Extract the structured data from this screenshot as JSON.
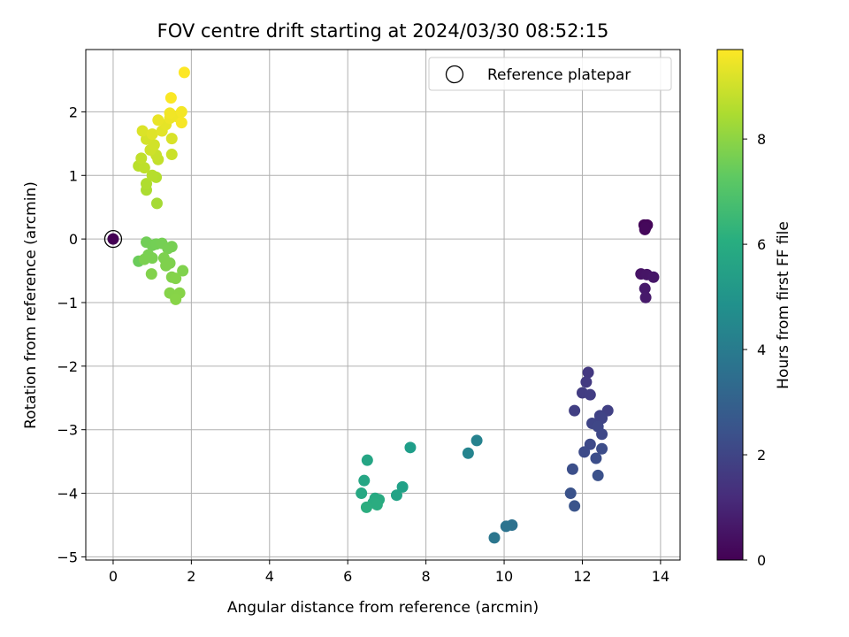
{
  "chart_data": {
    "type": "scatter",
    "title": "FOV centre drift starting at 2024/03/30 08:52:15",
    "xlabel": "Angular distance from reference (arcmin)",
    "ylabel": "Rotation from reference (arcmin)",
    "xlim": [
      -0.7,
      14.5
    ],
    "ylim": [
      -5.05,
      2.98
    ],
    "xticks": [
      0,
      2,
      4,
      6,
      8,
      10,
      12,
      14
    ],
    "yticks": [
      -5,
      -4,
      -3,
      -2,
      -1,
      0,
      1,
      2
    ],
    "grid": true,
    "legend": {
      "position": "top-right",
      "entries": [
        "Reference platepar"
      ]
    },
    "colorbar": {
      "label": "Hours from first FF file",
      "colormap": "viridis",
      "range": [
        0,
        9.7
      ],
      "ticks": [
        0,
        2,
        4,
        6,
        8
      ]
    },
    "reference_point": {
      "x": 0,
      "y": 0,
      "label": "Reference platepar"
    },
    "points": [
      {
        "x": 13.58,
        "y": 0.22,
        "h": 0.1
      },
      {
        "x": 13.66,
        "y": 0.22,
        "h": 0.15
      },
      {
        "x": 13.62,
        "y": 0.18,
        "h": 0.2
      },
      {
        "x": 13.6,
        "y": 0.15,
        "h": 0.2
      },
      {
        "x": 13.5,
        "y": -0.55,
        "h": 0.5
      },
      {
        "x": 13.65,
        "y": -0.56,
        "h": 0.55
      },
      {
        "x": 13.82,
        "y": -0.6,
        "h": 0.6
      },
      {
        "x": 13.6,
        "y": -0.78,
        "h": 0.65
      },
      {
        "x": 13.62,
        "y": -0.92,
        "h": 0.7
      },
      {
        "x": 12.15,
        "y": -2.1,
        "h": 1.6
      },
      {
        "x": 12.1,
        "y": -2.25,
        "h": 1.65
      },
      {
        "x": 12.0,
        "y": -2.42,
        "h": 1.7
      },
      {
        "x": 12.2,
        "y": -2.45,
        "h": 1.75
      },
      {
        "x": 11.8,
        "y": -2.7,
        "h": 1.8
      },
      {
        "x": 12.65,
        "y": -2.7,
        "h": 1.85
      },
      {
        "x": 12.45,
        "y": -2.78,
        "h": 1.9
      },
      {
        "x": 12.5,
        "y": -2.82,
        "h": 1.95
      },
      {
        "x": 12.25,
        "y": -2.9,
        "h": 2.0
      },
      {
        "x": 12.4,
        "y": -2.95,
        "h": 2.05
      },
      {
        "x": 12.5,
        "y": -3.07,
        "h": 2.1
      },
      {
        "x": 12.2,
        "y": -3.23,
        "h": 2.15
      },
      {
        "x": 12.05,
        "y": -3.35,
        "h": 2.2
      },
      {
        "x": 12.5,
        "y": -3.3,
        "h": 2.25
      },
      {
        "x": 12.35,
        "y": -3.45,
        "h": 2.3
      },
      {
        "x": 11.75,
        "y": -3.62,
        "h": 2.35
      },
      {
        "x": 12.4,
        "y": -3.72,
        "h": 2.4
      },
      {
        "x": 11.7,
        "y": -4.0,
        "h": 2.45
      },
      {
        "x": 11.8,
        "y": -4.2,
        "h": 2.5
      },
      {
        "x": 10.2,
        "y": -4.5,
        "h": 3.6
      },
      {
        "x": 10.05,
        "y": -4.52,
        "h": 3.7
      },
      {
        "x": 9.75,
        "y": -4.7,
        "h": 3.8
      },
      {
        "x": 9.3,
        "y": -3.17,
        "h": 4.3
      },
      {
        "x": 9.08,
        "y": -3.37,
        "h": 4.4
      },
      {
        "x": 7.6,
        "y": -3.28,
        "h": 5.4
      },
      {
        "x": 7.4,
        "y": -3.9,
        "h": 5.5
      },
      {
        "x": 7.25,
        "y": -4.03,
        "h": 5.6
      },
      {
        "x": 6.5,
        "y": -3.48,
        "h": 5.7
      },
      {
        "x": 6.42,
        "y": -3.8,
        "h": 5.75
      },
      {
        "x": 6.35,
        "y": -4.0,
        "h": 5.8
      },
      {
        "x": 6.7,
        "y": -4.08,
        "h": 5.85
      },
      {
        "x": 6.8,
        "y": -4.1,
        "h": 5.9
      },
      {
        "x": 6.65,
        "y": -4.15,
        "h": 5.95
      },
      {
        "x": 6.75,
        "y": -4.18,
        "h": 6.0
      },
      {
        "x": 6.48,
        "y": -4.22,
        "h": 6.05
      },
      {
        "x": 0.65,
        "y": -0.35,
        "h": 7.5
      },
      {
        "x": 0.85,
        "y": -0.05,
        "h": 7.6
      },
      {
        "x": 1.0,
        "y": -0.1,
        "h": 7.62
      },
      {
        "x": 1.1,
        "y": -0.08,
        "h": 7.64
      },
      {
        "x": 1.25,
        "y": -0.07,
        "h": 7.66
      },
      {
        "x": 1.5,
        "y": -0.12,
        "h": 7.68
      },
      {
        "x": 1.4,
        "y": -0.15,
        "h": 7.7
      },
      {
        "x": 0.9,
        "y": -0.25,
        "h": 7.72
      },
      {
        "x": 1.0,
        "y": -0.3,
        "h": 7.74
      },
      {
        "x": 0.8,
        "y": -0.32,
        "h": 7.76
      },
      {
        "x": 1.3,
        "y": -0.3,
        "h": 7.78
      },
      {
        "x": 1.45,
        "y": -0.38,
        "h": 7.8
      },
      {
        "x": 1.35,
        "y": -0.42,
        "h": 7.82
      },
      {
        "x": 1.78,
        "y": -0.5,
        "h": 7.84
      },
      {
        "x": 0.98,
        "y": -0.55,
        "h": 7.86
      },
      {
        "x": 1.5,
        "y": -0.6,
        "h": 7.88
      },
      {
        "x": 1.6,
        "y": -0.62,
        "h": 7.9
      },
      {
        "x": 1.45,
        "y": -0.85,
        "h": 7.92
      },
      {
        "x": 1.7,
        "y": -0.85,
        "h": 7.94
      },
      {
        "x": 1.6,
        "y": -0.95,
        "h": 7.96
      },
      {
        "x": 1.12,
        "y": 0.56,
        "h": 8.4
      },
      {
        "x": 0.85,
        "y": 0.77,
        "h": 8.5
      },
      {
        "x": 0.85,
        "y": 0.87,
        "h": 8.55
      },
      {
        "x": 1.1,
        "y": 0.97,
        "h": 8.6
      },
      {
        "x": 1.0,
        "y": 1.0,
        "h": 8.65
      },
      {
        "x": 0.65,
        "y": 1.15,
        "h": 8.7
      },
      {
        "x": 0.8,
        "y": 1.12,
        "h": 8.75
      },
      {
        "x": 0.72,
        "y": 1.27,
        "h": 8.8
      },
      {
        "x": 1.15,
        "y": 1.25,
        "h": 8.85
      },
      {
        "x": 1.1,
        "y": 1.32,
        "h": 8.9
      },
      {
        "x": 1.5,
        "y": 1.33,
        "h": 8.95
      },
      {
        "x": 0.95,
        "y": 1.4,
        "h": 9.0
      },
      {
        "x": 1.05,
        "y": 1.48,
        "h": 9.05
      },
      {
        "x": 0.85,
        "y": 1.57,
        "h": 9.1
      },
      {
        "x": 1.5,
        "y": 1.58,
        "h": 9.15
      },
      {
        "x": 0.75,
        "y": 1.7,
        "h": 9.2
      },
      {
        "x": 1.0,
        "y": 1.65,
        "h": 9.25
      },
      {
        "x": 1.25,
        "y": 1.7,
        "h": 9.3
      },
      {
        "x": 1.35,
        "y": 1.8,
        "h": 9.35
      },
      {
        "x": 1.15,
        "y": 1.87,
        "h": 9.4
      },
      {
        "x": 1.45,
        "y": 1.9,
        "h": 9.45
      },
      {
        "x": 1.6,
        "y": 1.93,
        "h": 9.5
      },
      {
        "x": 1.45,
        "y": 1.98,
        "h": 9.52
      },
      {
        "x": 1.75,
        "y": 2.0,
        "h": 9.55
      },
      {
        "x": 1.75,
        "y": 1.83,
        "h": 9.6
      },
      {
        "x": 1.48,
        "y": 2.22,
        "h": 9.65
      },
      {
        "x": 1.82,
        "y": 2.62,
        "h": 9.7
      }
    ]
  }
}
